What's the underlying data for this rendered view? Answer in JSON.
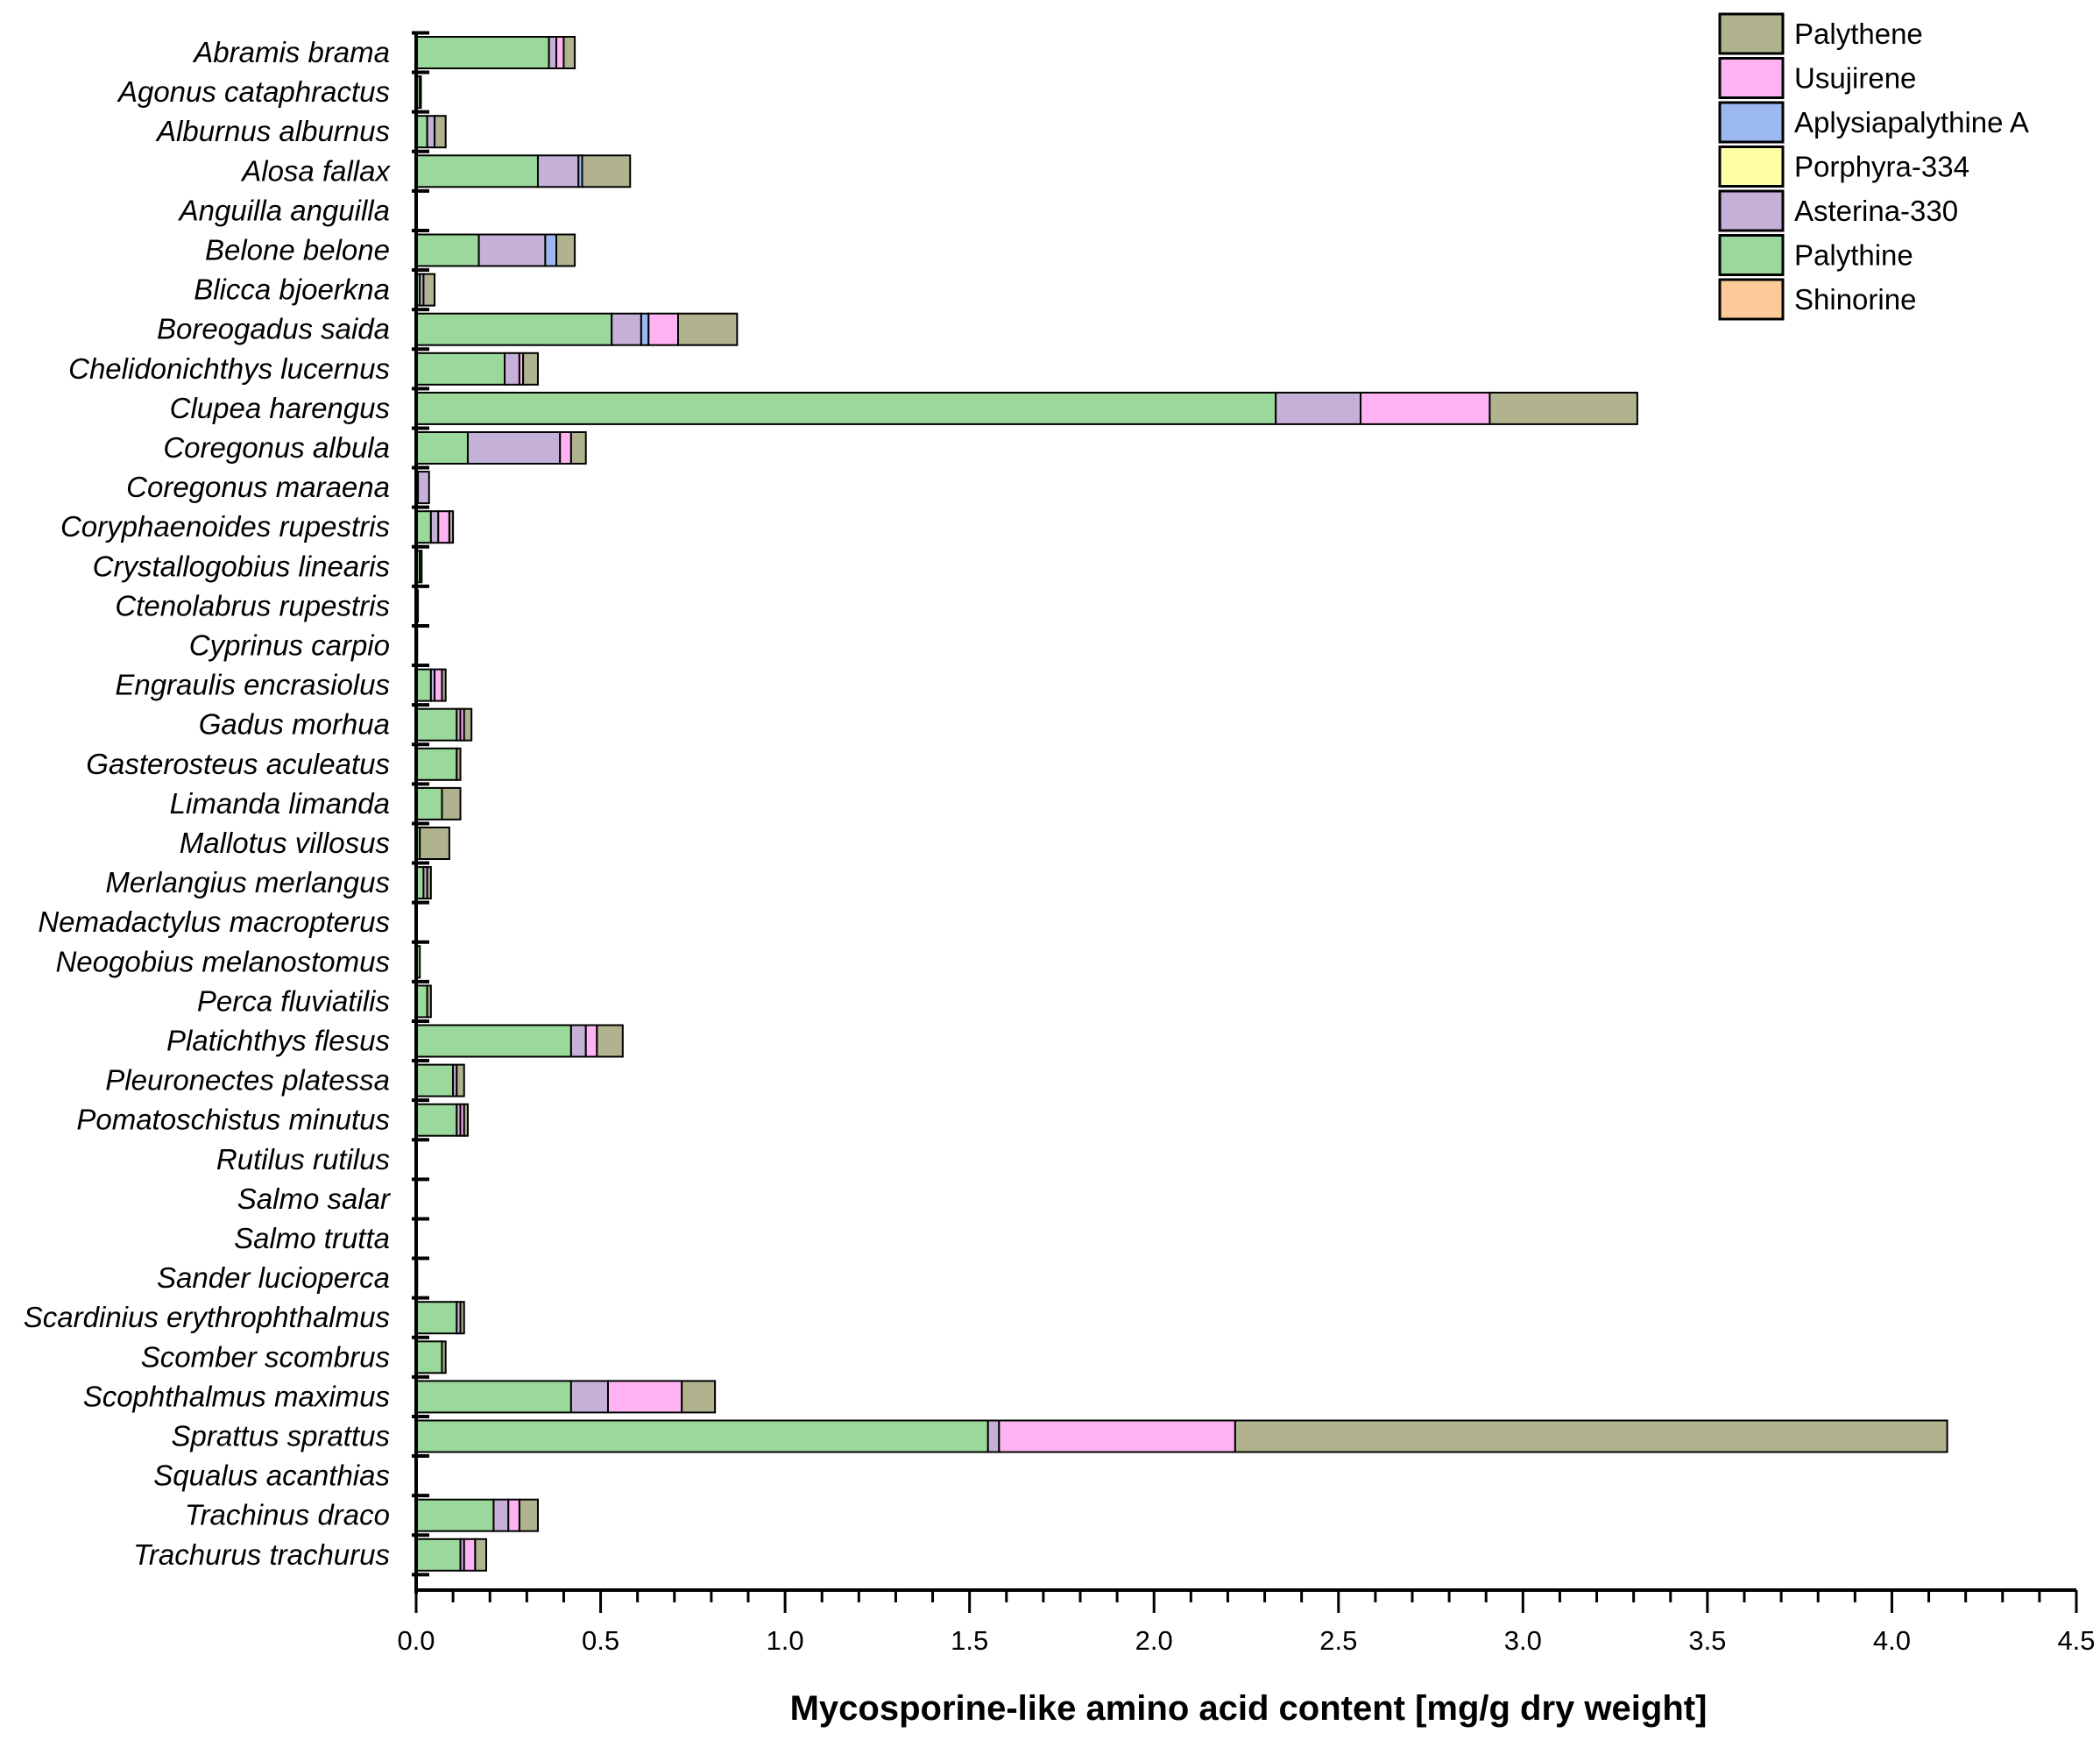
{
  "chart_data": {
    "type": "bar",
    "orientation": "horizontal",
    "stacked": true,
    "title": "",
    "xlabel": "Mycosporine-like amino acid content [mg/g dry weight]",
    "ylabel": "",
    "xlim": [
      0,
      4.5
    ],
    "xticks": [
      "0.0",
      "0.5",
      "1.0",
      "1.5",
      "2.0",
      "2.5",
      "3.0",
      "3.5",
      "4.0",
      "4.5"
    ],
    "legend_position": "top-right",
    "categories": [
      "Abramis brama",
      "Agonus cataphractus",
      "Alburnus alburnus",
      "Alosa fallax",
      "Anguilla anguilla",
      "Belone belone",
      "Blicca bjoerkna",
      "Boreogadus saida",
      "Chelidonichthys lucernus",
      "Clupea harengus",
      "Coregonus albula",
      "Coregonus maraena",
      "Coryphaenoides rupestris",
      "Crystallogobius linearis",
      "Ctenolabrus rupestris",
      "Cyprinus carpio",
      "Engraulis encrasiolus",
      "Gadus morhua",
      "Gasterosteus aculeatus",
      "Limanda limanda",
      "Mallotus villosus",
      "Merlangius merlangus",
      "Nemadactylus macropterus",
      "Neogobius melanostomus",
      "Perca fluviatilis",
      "Platichthys flesus",
      "Pleuronectes platessa",
      "Pomatoschistus minutus",
      "Rutilus rutilus",
      "Salmo salar",
      "Salmo trutta",
      "Sander lucioperca",
      "Scardinius erythrophthalmus",
      "Scomber scombrus",
      "Scophthalmus maximus",
      "Sprattus sprattus",
      "Squalus acanthias",
      "Trachinus draco",
      "Trachurus trachurus"
    ],
    "series": [
      {
        "name": "Shinorine",
        "color": "#fcc998",
        "values": [
          0,
          0,
          0,
          0,
          0,
          0,
          0,
          0,
          0,
          0,
          0,
          0,
          0,
          0,
          0,
          0,
          0,
          0,
          0,
          0,
          0,
          0,
          0,
          0,
          0,
          0,
          0,
          0,
          0,
          0,
          0,
          0,
          0,
          0,
          0,
          0,
          0,
          0,
          0
        ]
      },
      {
        "name": "Palythine",
        "color": "#9bd89b",
        "values": [
          0.36,
          0.01,
          0.03,
          0.33,
          0,
          0.17,
          0.01,
          0.53,
          0.24,
          2.33,
          0.14,
          0.005,
          0.04,
          0.01,
          0.005,
          0.003,
          0.04,
          0.11,
          0.11,
          0.07,
          0.01,
          0.02,
          0.002,
          0.01,
          0.03,
          0.42,
          0.1,
          0.11,
          0,
          0,
          0,
          0.003,
          0.11,
          0.07,
          0.42,
          1.55,
          0,
          0.21,
          0.12
        ]
      },
      {
        "name": "Asterina-330",
        "color": "#c5b1d7",
        "values": [
          0.02,
          0,
          0.02,
          0.11,
          0,
          0.18,
          0.01,
          0.08,
          0.04,
          0.23,
          0.25,
          0.03,
          0.02,
          0,
          0,
          0,
          0.01,
          0.01,
          0,
          0,
          0,
          0.01,
          0,
          0,
          0,
          0.04,
          0.01,
          0.01,
          0,
          0,
          0,
          0,
          0.01,
          0,
          0.1,
          0.03,
          0,
          0.04,
          0.01
        ]
      },
      {
        "name": "Porphyra-334",
        "color": "#ffffa8",
        "values": [
          0,
          0,
          0,
          0,
          0,
          0,
          0,
          0,
          0,
          0,
          0,
          0,
          0,
          0,
          0,
          0,
          0,
          0,
          0,
          0,
          0,
          0,
          0,
          0,
          0,
          0,
          0,
          0,
          0,
          0,
          0,
          0,
          0,
          0,
          0,
          0,
          0,
          0,
          0
        ]
      },
      {
        "name": "Aplysiapalythine A",
        "color": "#9bb9f0",
        "values": [
          0,
          0,
          0,
          0.01,
          0,
          0.03,
          0,
          0.02,
          0,
          0,
          0,
          0,
          0,
          0,
          0,
          0,
          0,
          0,
          0,
          0,
          0,
          0,
          0,
          0,
          0,
          0,
          0,
          0,
          0,
          0,
          0,
          0,
          0,
          0,
          0,
          0,
          0,
          0,
          0
        ]
      },
      {
        "name": "Usujirene",
        "color": "#ffb3f3",
        "values": [
          0.02,
          0,
          0,
          0,
          0,
          0,
          0,
          0.08,
          0.01,
          0.35,
          0.03,
          0,
          0.03,
          0,
          0,
          0,
          0.02,
          0.01,
          0,
          0,
          0,
          0,
          0,
          0,
          0,
          0.03,
          0,
          0.01,
          0,
          0,
          0,
          0,
          0,
          0,
          0.2,
          0.64,
          0,
          0.03,
          0.03
        ]
      },
      {
        "name": "Palythene",
        "color": "#b0b38e",
        "values": [
          0.03,
          0.003,
          0.03,
          0.13,
          0,
          0.05,
          0.03,
          0.16,
          0.04,
          0.4,
          0.04,
          0,
          0.01,
          0.005,
          0,
          0,
          0.01,
          0.02,
          0.01,
          0.05,
          0.08,
          0.01,
          0,
          0,
          0.01,
          0.07,
          0.02,
          0.01,
          0,
          0,
          0,
          0,
          0.01,
          0.01,
          0.09,
          1.93,
          0,
          0.05,
          0.03
        ]
      }
    ]
  }
}
